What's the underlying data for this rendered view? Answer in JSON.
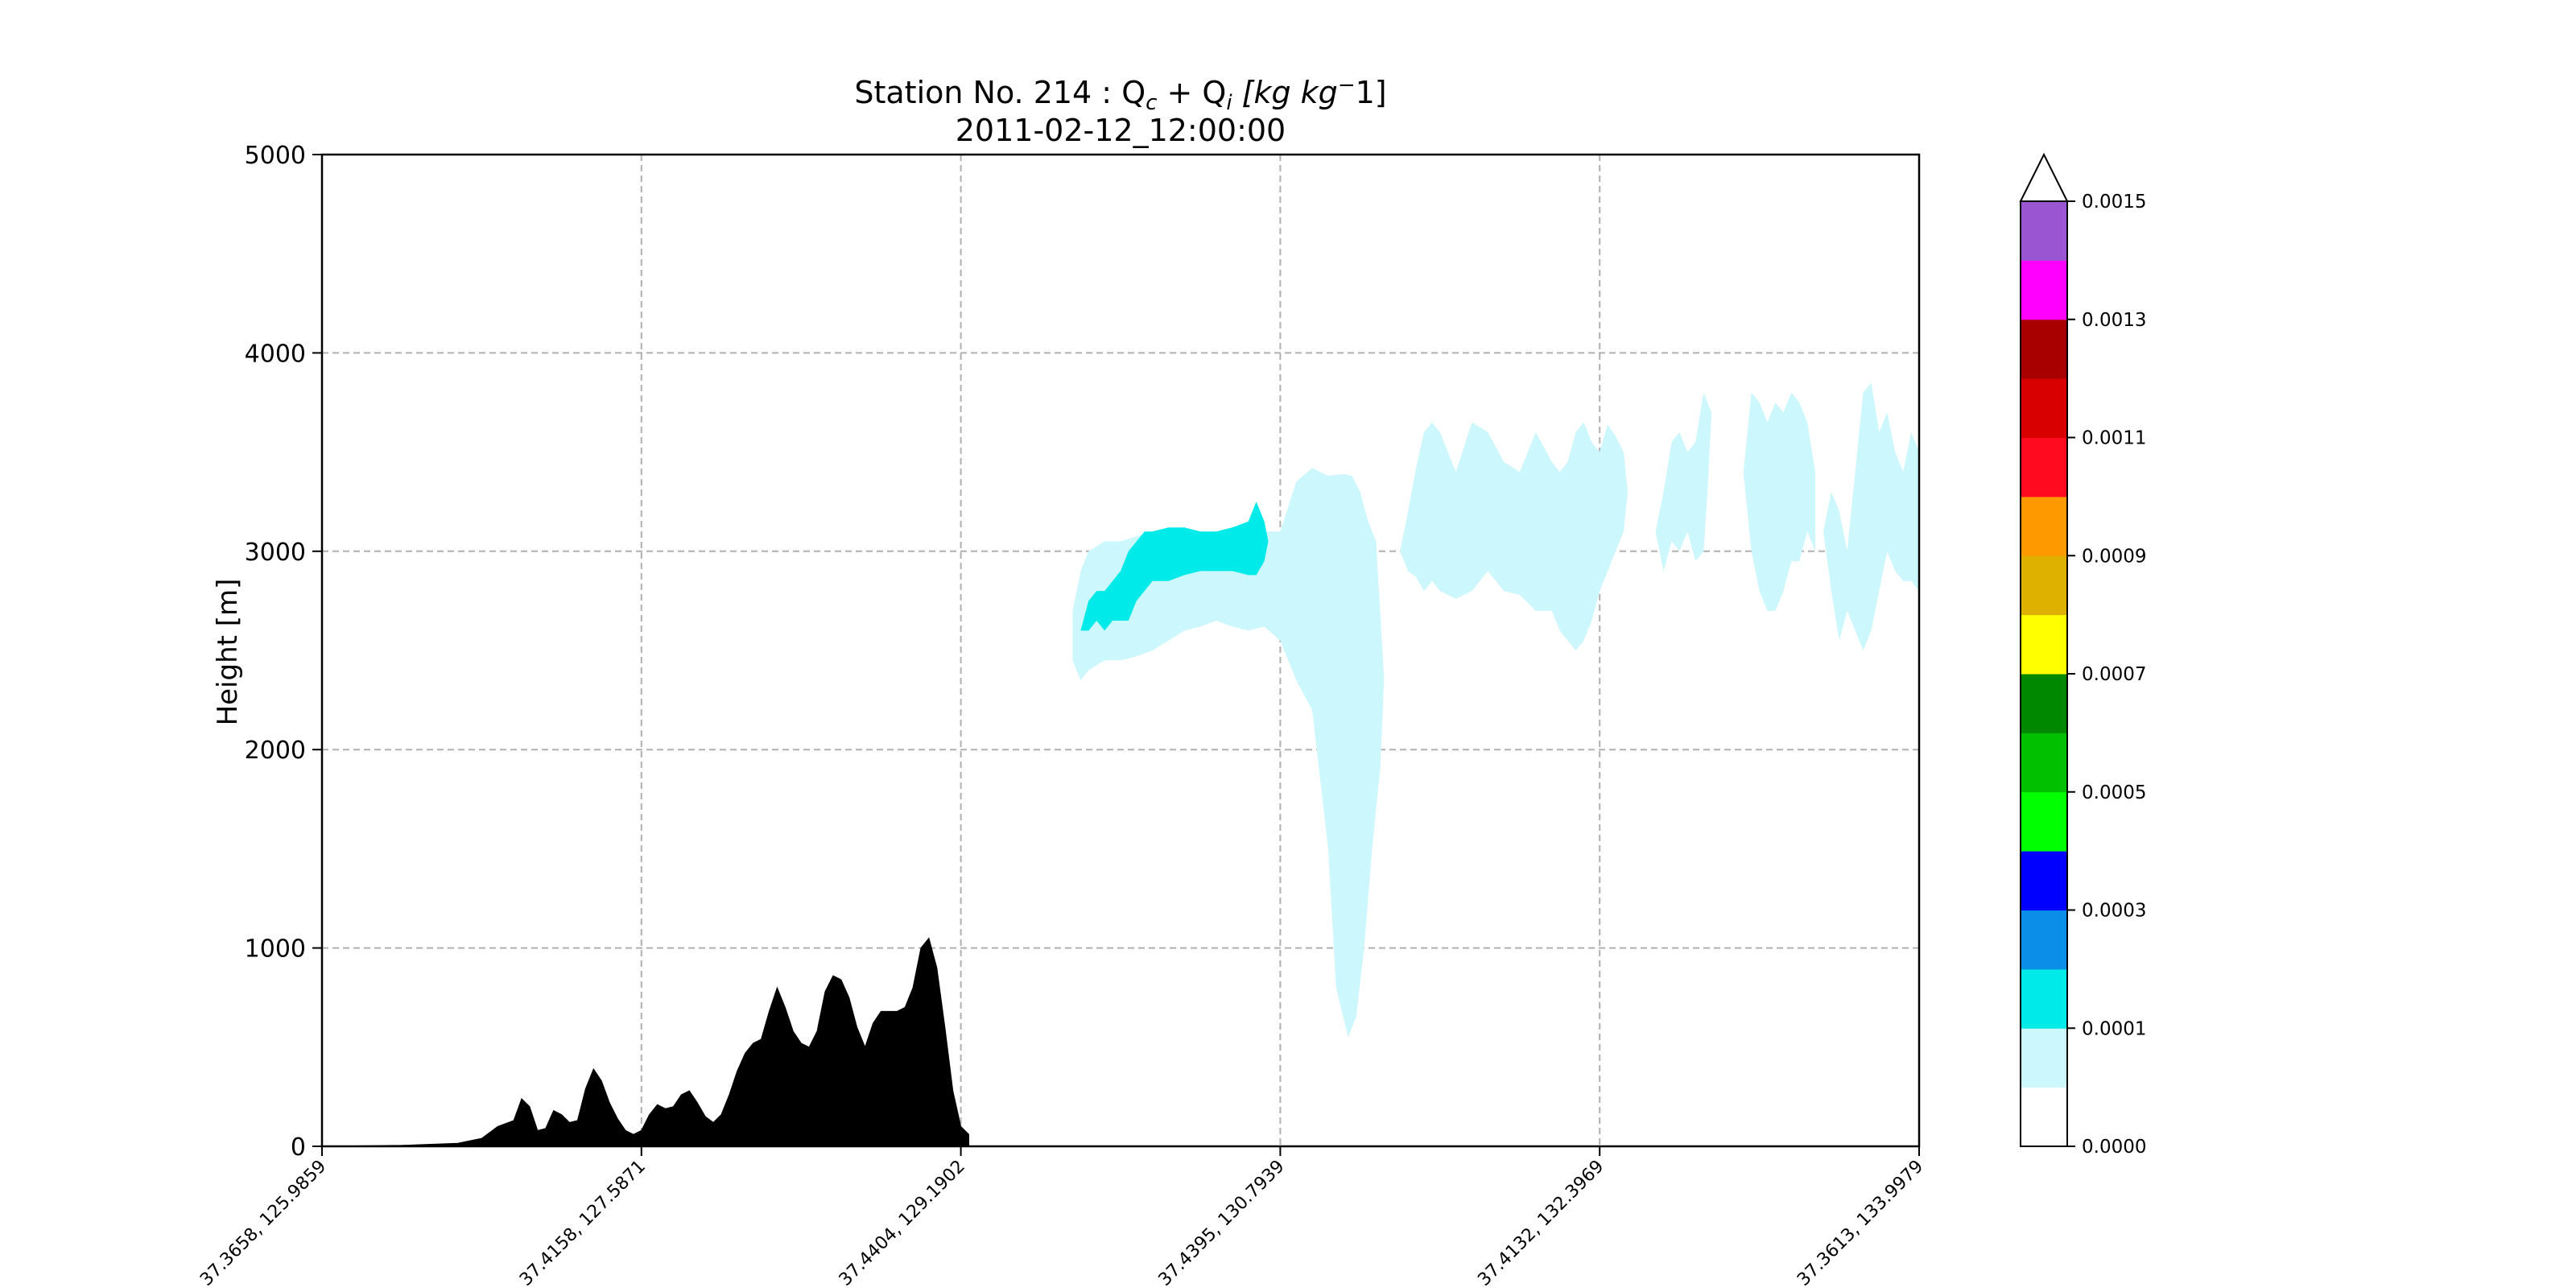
{
  "chart_data": {
    "type": "contour-cross-section",
    "title_line1": "Station No. 214 : Q",
    "title_sub_c": "c",
    "title_plus": " + Q",
    "title_sub_i": "i",
    "title_units": " [kg kg",
    "title_units_sup": "−",
    "title_units_end": "1]",
    "title_line2": "2011-02-12_12:00:00",
    "ylabel": "Height [m]",
    "ylim": [
      0,
      5000
    ],
    "yticks": [
      0,
      1000,
      2000,
      3000,
      4000,
      5000
    ],
    "ytick_labels": [
      "0",
      "1000",
      "2000",
      "3000",
      "4000",
      "5000"
    ],
    "xlim": [
      0,
      200
    ],
    "xticks": [
      0,
      40,
      80,
      120,
      160,
      200
    ],
    "xtick_labels": [
      "37.3658, 125.9859",
      "37.4158, 127.5871",
      "37.4404, 129.1902",
      "37.4395, 130.7939",
      "37.4132, 132.3969",
      "37.3613, 133.9979"
    ],
    "grid": true,
    "terrain": {
      "x": [
        0,
        10,
        17,
        20,
        22,
        24,
        25,
        26,
        27,
        28,
        29,
        30,
        31,
        32,
        33,
        34,
        35,
        36,
        37,
        38,
        39,
        40,
        41,
        42,
        43,
        44,
        45,
        46,
        47,
        48,
        49,
        50,
        51,
        52,
        53,
        54,
        55,
        56,
        57,
        58,
        59,
        60,
        61,
        62,
        63,
        64,
        65,
        66,
        67,
        68,
        69,
        70,
        71,
        72,
        73,
        74,
        75,
        76,
        77,
        78,
        79,
        80,
        81
      ],
      "y": [
        0,
        5,
        15,
        40,
        100,
        130,
        240,
        200,
        80,
        90,
        180,
        160,
        120,
        130,
        290,
        390,
        330,
        220,
        140,
        80,
        60,
        80,
        160,
        210,
        190,
        200,
        260,
        280,
        220,
        150,
        120,
        160,
        260,
        380,
        470,
        520,
        540,
        680,
        800,
        700,
        580,
        520,
        500,
        580,
        780,
        860,
        840,
        750,
        600,
        500,
        620,
        680,
        680,
        680,
        700,
        800,
        1000,
        1050,
        900,
        600,
        280,
        100,
        60
      ]
    },
    "colorbar": {
      "levels": [
        "0.0000",
        "0.0001",
        "0.0002",
        "0.0003",
        "0.0004",
        "0.0005",
        "0.0006",
        "0.0007",
        "0.0008",
        "0.0009",
        "0.0010",
        "0.0011",
        "0.0012",
        "0.0013",
        "0.0014",
        "0.0015"
      ],
      "tick_labels": [
        "0.0000",
        "0.0001",
        "0.0003",
        "0.0005",
        "0.0007",
        "0.0009",
        "0.0011",
        "0.0013",
        "0.0015"
      ],
      "colors": [
        "#ffffff",
        "#ccf7fc",
        "#00eaea",
        "#0a8ee8",
        "#0000ff",
        "#00ff00",
        "#00c000",
        "#008800",
        "#ffff00",
        "#deb100",
        "#ff9900",
        "#ff0a1e",
        "#d80000",
        "#a80000",
        "#ff00ff",
        "#9955d2"
      ],
      "extend": "max"
    },
    "cloud_regions": [
      {
        "level_index": 1,
        "x": [
          94,
          95,
          96,
          98,
          100,
          104,
          108,
          112,
          116,
          118,
          120,
          122,
          124,
          126,
          128,
          129,
          130,
          131,
          132,
          132.5,
          133,
          132.5,
          131.5,
          130.5,
          129.5,
          128.5,
          127,
          126,
          124,
          122,
          120,
          118,
          116,
          114,
          112,
          110,
          108,
          106,
          104,
          102,
          100,
          98,
          96,
          95,
          94
        ],
        "y": [
          2700,
          2900,
          3000,
          3050,
          3050,
          3100,
          3100,
          3100,
          3100,
          3100,
          3100,
          3350,
          3420,
          3380,
          3390,
          3380,
          3300,
          3150,
          3050,
          2700,
          2350,
          1900,
          1500,
          1000,
          650,
          550,
          800,
          1500,
          2200,
          2350,
          2550,
          2620,
          2600,
          2620,
          2650,
          2620,
          2600,
          2550,
          2500,
          2470,
          2450,
          2450,
          2400,
          2350,
          2450
        ]
      },
      {
        "level_index": 1,
        "x": [
          135,
          136,
          137,
          138,
          139,
          140,
          142,
          144,
          146,
          148,
          150,
          152,
          154,
          155,
          156,
          157,
          158,
          159,
          160,
          161,
          162,
          163,
          163.5,
          163,
          162,
          161,
          160,
          159,
          158,
          157,
          156,
          155,
          154,
          152,
          150,
          148,
          146,
          144,
          142,
          140,
          139,
          138,
          137,
          136,
          135
        ],
        "y": [
          3000,
          3200,
          3420,
          3600,
          3650,
          3600,
          3400,
          3650,
          3600,
          3450,
          3400,
          3600,
          3450,
          3400,
          3450,
          3600,
          3650,
          3550,
          3500,
          3640,
          3580,
          3500,
          3300,
          3100,
          3000,
          2900,
          2800,
          2650,
          2550,
          2500,
          2550,
          2600,
          2700,
          2700,
          2780,
          2800,
          2900,
          2800,
          2760,
          2800,
          2850,
          2800,
          2870,
          2900,
          3000
        ]
      },
      {
        "level_index": 1,
        "x": [
          167,
          168,
          169,
          170,
          171,
          172,
          173,
          174,
          173.5,
          173,
          172,
          171,
          170,
          169,
          168,
          167
        ],
        "y": [
          3100,
          3300,
          3550,
          3600,
          3500,
          3550,
          3800,
          3700,
          3300,
          3000,
          2950,
          3100,
          3000,
          3050,
          2900,
          3100
        ]
      },
      {
        "level_index": 1,
        "x": [
          178,
          179,
          180,
          181,
          182,
          183,
          184,
          185,
          186,
          187,
          187,
          186,
          185,
          184,
          183,
          182,
          181,
          180,
          179,
          178
        ],
        "y": [
          3400,
          3800,
          3750,
          3650,
          3750,
          3700,
          3800,
          3750,
          3650,
          3400,
          3000,
          3100,
          2950,
          2950,
          2800,
          2700,
          2700,
          2800,
          3000,
          3400
        ]
      },
      {
        "level_index": 1,
        "x": [
          188,
          189,
          190,
          191,
          192,
          193,
          194,
          195,
          196,
          197,
          198,
          199,
          200,
          200,
          199,
          198,
          197,
          196,
          195,
          194,
          193,
          192,
          191,
          190,
          189,
          188
        ],
        "y": [
          3100,
          3300,
          3200,
          3000,
          3400,
          3800,
          3850,
          3600,
          3700,
          3500,
          3400,
          3600,
          3500,
          2800,
          2850,
          2850,
          2900,
          3000,
          2800,
          2600,
          2500,
          2600,
          2700,
          2550,
          2800,
          3100
        ]
      },
      {
        "level_index": 2,
        "x": [
          95,
          96,
          97,
          98,
          99,
          100,
          101,
          102,
          103,
          104,
          106,
          108,
          110,
          112,
          114,
          116,
          117,
          118,
          118.5,
          118,
          117,
          116,
          114,
          112,
          110,
          108,
          106,
          104,
          103,
          102,
          101,
          100,
          99,
          98,
          97,
          96,
          95
        ],
        "y": [
          2600,
          2750,
          2800,
          2800,
          2850,
          2900,
          3000,
          3050,
          3100,
          3100,
          3120,
          3120,
          3100,
          3100,
          3120,
          3150,
          3250,
          3150,
          3050,
          2950,
          2880,
          2880,
          2900,
          2900,
          2900,
          2880,
          2850,
          2850,
          2800,
          2750,
          2650,
          2650,
          2650,
          2600,
          2650,
          2600,
          2600
        ]
      }
    ]
  }
}
